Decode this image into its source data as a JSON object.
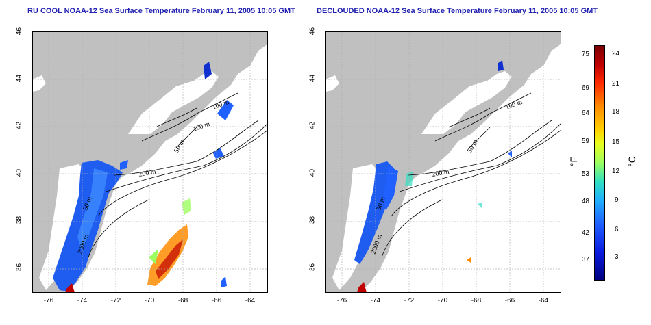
{
  "titles": {
    "left": "RU COOL NOAA-12 Sea Surface Temperature February 11, 2005 10:05 GMT",
    "right": "DECLOUDED NOAA-12 Sea Surface Temperature February 11, 2005 10:05 GMT"
  },
  "axes": {
    "lat_ticks": [
      "36",
      "38",
      "40",
      "42",
      "44",
      "46"
    ],
    "lon_ticks": [
      "-76",
      "-74",
      "-72",
      "-70",
      "-68",
      "-66",
      "-64"
    ],
    "lat_range": [
      35,
      46
    ],
    "lon_range": [
      -77,
      -63
    ]
  },
  "contour_labels": [
    "100 m",
    "100 m",
    "50 m",
    "200 m",
    "50 m",
    "2000 m"
  ],
  "colorbar": {
    "fahrenheit_ticks": [
      "75",
      "69",
      "64",
      "59",
      "53",
      "48",
      "42",
      "37"
    ],
    "celsius_ticks": [
      "24",
      "21",
      "18",
      "15",
      "12",
      "9",
      "6",
      "3"
    ],
    "unit_f": "°F",
    "unit_c": "°C",
    "colors": [
      "#7a0000",
      "#c00000",
      "#ff2a00",
      "#ff8c00",
      "#ffd200",
      "#e8ff20",
      "#9cff60",
      "#30e0c0",
      "#20b0ff",
      "#2060ff",
      "#0a1ce0",
      "#000080"
    ]
  },
  "colors": {
    "land": "#c0c0c0",
    "water": "#ffffff",
    "title": "#1f1fb0",
    "grid": "#b0b0b0"
  }
}
